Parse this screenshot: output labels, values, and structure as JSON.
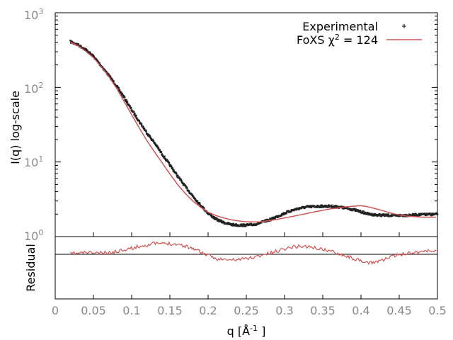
{
  "chart_data": {
    "type": "line",
    "xlabel": "q [Å",
    "xlabel_sup": "-1",
    "xlabel_close": "]",
    "ylabel": "I(q) log-scale",
    "residual_label": "Residual",
    "x_range": [
      0,
      0.5
    ],
    "y_range": [
      1,
      1000
    ],
    "y_scale": "log",
    "x_ticks": [
      "0",
      "0.05",
      "0.1",
      "0.15",
      "0.2",
      "0.25",
      "0.3",
      "0.35",
      "0.4",
      "0.45",
      "0.5"
    ],
    "x_tick_values": [
      0,
      0.05,
      0.1,
      0.15,
      0.2,
      0.25,
      0.3,
      0.35,
      0.4,
      0.45,
      0.5
    ],
    "y_ticks": [
      {
        "base": "10",
        "exp": "3",
        "value": 1000
      },
      {
        "base": "10",
        "exp": "2",
        "value": 100
      },
      {
        "base": "10",
        "exp": "1",
        "value": 10
      },
      {
        "base": "10",
        "exp": "0",
        "value": 1
      }
    ],
    "legend_position": "top-right",
    "series": [
      {
        "name": "Experimental",
        "color": "#000000",
        "style": "points",
        "x": [
          0.02,
          0.03,
          0.04,
          0.05,
          0.06,
          0.07,
          0.08,
          0.09,
          0.1,
          0.11,
          0.12,
          0.13,
          0.14,
          0.15,
          0.16,
          0.17,
          0.18,
          0.19,
          0.2,
          0.21,
          0.22,
          0.23,
          0.24,
          0.25,
          0.26,
          0.27,
          0.28,
          0.29,
          0.3,
          0.31,
          0.32,
          0.33,
          0.34,
          0.35,
          0.36,
          0.37,
          0.38,
          0.39,
          0.4,
          0.41,
          0.42,
          0.43,
          0.44,
          0.45,
          0.46,
          0.47,
          0.48,
          0.49,
          0.5
        ],
        "y": [
          410,
          370,
          320,
          260,
          195,
          145,
          105,
          74,
          50,
          35,
          24.5,
          18,
          12.7,
          9.1,
          6.5,
          4.7,
          3.5,
          2.65,
          2.05,
          1.72,
          1.55,
          1.45,
          1.42,
          1.42,
          1.45,
          1.55,
          1.67,
          1.85,
          2.05,
          2.25,
          2.4,
          2.5,
          2.53,
          2.55,
          2.55,
          2.5,
          2.4,
          2.3,
          2.15,
          2.0,
          1.95,
          1.93,
          1.92,
          1.92,
          1.93,
          1.95,
          1.97,
          1.98,
          2.0
        ]
      },
      {
        "name": "FoXS χ",
        "name_sup": "2",
        "name_suffix": " = 124",
        "color": "#d05555",
        "style": "line",
        "x": [
          0.02,
          0.03,
          0.04,
          0.05,
          0.06,
          0.07,
          0.08,
          0.09,
          0.1,
          0.11,
          0.12,
          0.13,
          0.14,
          0.15,
          0.16,
          0.17,
          0.18,
          0.19,
          0.2,
          0.21,
          0.22,
          0.23,
          0.24,
          0.25,
          0.26,
          0.27,
          0.28,
          0.29,
          0.3,
          0.31,
          0.32,
          0.33,
          0.34,
          0.35,
          0.36,
          0.37,
          0.38,
          0.39,
          0.4,
          0.41,
          0.42,
          0.43,
          0.44,
          0.45,
          0.46,
          0.47,
          0.48,
          0.49,
          0.5
        ],
        "y": [
          405,
          360,
          305,
          250,
          190,
          140,
          98,
          65,
          43,
          28.5,
          19.3,
          13.6,
          9.7,
          6.9,
          5.0,
          3.8,
          3.0,
          2.48,
          2.12,
          1.92,
          1.78,
          1.68,
          1.62,
          1.58,
          1.57,
          1.58,
          1.64,
          1.7,
          1.78,
          1.86,
          1.95,
          2.05,
          2.15,
          2.25,
          2.35,
          2.42,
          2.5,
          2.55,
          2.6,
          2.5,
          2.35,
          2.2,
          2.05,
          1.95,
          1.88,
          1.85,
          1.82,
          1.82,
          1.82
        ]
      }
    ]
  }
}
